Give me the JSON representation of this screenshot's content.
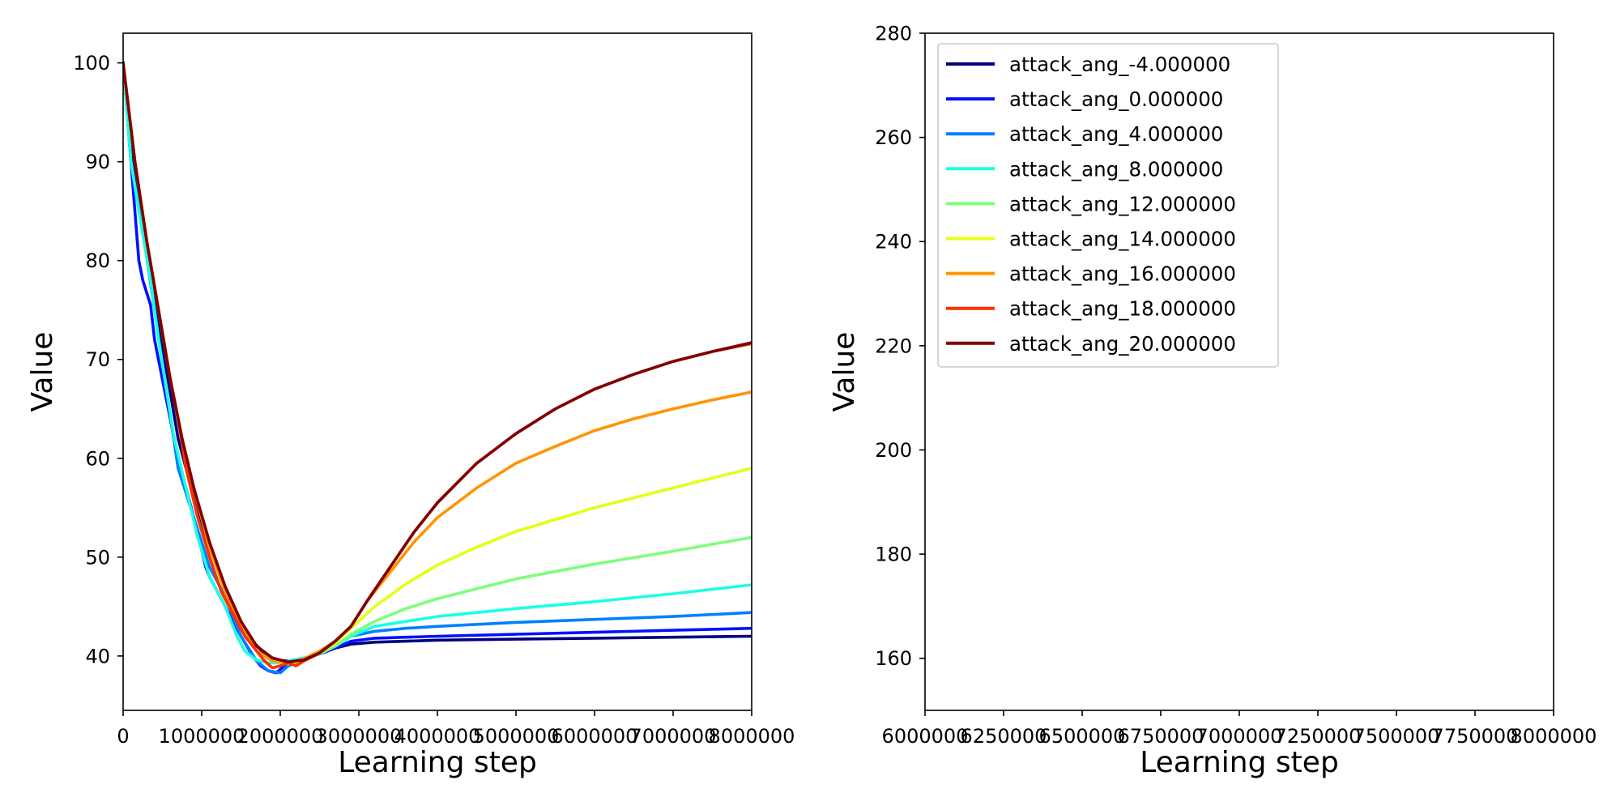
{
  "chart_data": [
    {
      "type": "line",
      "title": "",
      "xlabel": "Learning step",
      "ylabel": "Value",
      "xlim": [
        0,
        8000000
      ],
      "ylim": [
        34.5,
        103
      ],
      "xticks": [
        0,
        1000000,
        2000000,
        3000000,
        4000000,
        5000000,
        6000000,
        7000000,
        8000000
      ],
      "xtick_labels": [
        "0",
        "1000000",
        "2000000",
        "3000000",
        "4000000",
        "5000000",
        "6000000",
        "7000000",
        "8000000"
      ],
      "yticks": [
        40,
        50,
        60,
        70,
        80,
        90,
        100
      ],
      "ytick_labels": [
        "40",
        "50",
        "60",
        "70",
        "80",
        "90",
        "100"
      ],
      "grid": false,
      "legend": "none",
      "series": [
        {
          "name": "attack_ang_-4.000000",
          "color": "#000080",
          "x": [
            0,
            100000,
            250000,
            400000,
            550000,
            700000,
            900000,
            1100000,
            1300000,
            1500000,
            1650000,
            1800000,
            1950000,
            2100000,
            2300000,
            2500000,
            2700000,
            2900000,
            3200000,
            3600000,
            4000000,
            5000000,
            6000000,
            7000000,
            8000000
          ],
          "y": [
            100,
            91,
            84,
            76,
            69,
            62,
            56,
            51,
            47,
            43.5,
            41.5,
            40.2,
            39.6,
            39.5,
            39.7,
            40.2,
            40.8,
            41.2,
            41.4,
            41.5,
            41.6,
            41.7,
            41.8,
            41.9,
            42.0
          ]
        },
        {
          "name": "attack_ang_0.000000",
          "color": "#0010ff",
          "x": [
            0,
            100000,
            200000,
            250000,
            350000,
            400000,
            550000,
            700000,
            900000,
            1050000,
            1100000,
            1300000,
            1500000,
            1650000,
            1750000,
            1850000,
            1950000,
            2100000,
            2300000,
            2500000,
            2700000,
            2900000,
            3200000,
            3600000,
            4000000,
            5000000,
            6000000,
            7000000,
            8000000
          ],
          "y": [
            100,
            90,
            80,
            78,
            75.5,
            72,
            66,
            60,
            54,
            49,
            48,
            45,
            42,
            40,
            39,
            38.5,
            38.3,
            39.3,
            39.7,
            40.2,
            40.8,
            41.5,
            41.8,
            41.9,
            42.0,
            42.2,
            42.4,
            42.6,
            42.8
          ]
        },
        {
          "name": "attack_ang_4.000000",
          "color": "#0080ff",
          "x": [
            0,
            100000,
            250000,
            400000,
            550000,
            700000,
            900000,
            1100000,
            1300000,
            1500000,
            1700000,
            1850000,
            2000000,
            2100000,
            2300000,
            2500000,
            2700000,
            2900000,
            3200000,
            3600000,
            4000000,
            5000000,
            6000000,
            7000000,
            8000000
          ],
          "y": [
            100,
            90,
            83,
            75,
            67,
            59,
            54,
            49,
            46,
            42,
            39.5,
            38.5,
            38.3,
            39,
            39.6,
            40.2,
            41.0,
            42.0,
            42.5,
            42.8,
            43.0,
            43.4,
            43.7,
            44.0,
            44.4
          ]
        },
        {
          "name": "attack_ang_8.000000",
          "color": "#1affe5",
          "x": [
            0,
            100000,
            200000,
            350000,
            450000,
            550000,
            650000,
            800000,
            950000,
            1100000,
            1300000,
            1450000,
            1550000,
            1700000,
            1850000,
            2000000,
            2100000,
            2300000,
            2500000,
            2700000,
            2900000,
            3200000,
            3600000,
            4000000,
            5000000,
            6000000,
            7000000,
            8000000
          ],
          "y": [
            100,
            90,
            85,
            78,
            72,
            67,
            62,
            57,
            52,
            48,
            45,
            42,
            40.5,
            39.6,
            39.3,
            39.3,
            39.5,
            39.8,
            40.3,
            41.0,
            42.0,
            43.0,
            43.5,
            44.0,
            44.8,
            45.5,
            46.3,
            47.2
          ]
        },
        {
          "name": "attack_ang_12.000000",
          "color": "#7dff7a",
          "x": [
            0,
            150000,
            300000,
            450000,
            600000,
            750000,
            900000,
            1100000,
            1300000,
            1500000,
            1700000,
            1900000,
            2100000,
            2300000,
            2500000,
            2700000,
            2900000,
            3200000,
            3600000,
            4000000,
            4500000,
            5000000,
            6000000,
            7000000,
            8000000
          ],
          "y": [
            100,
            90,
            82,
            75,
            68,
            62,
            57,
            51,
            47,
            43,
            40.5,
            39.5,
            39.3,
            39.6,
            40.2,
            41.0,
            42.2,
            43.5,
            44.8,
            45.8,
            46.8,
            47.8,
            49.3,
            50.6,
            52.0
          ]
        },
        {
          "name": "attack_ang_14.000000",
          "color": "#e4ff13",
          "x": [
            0,
            150000,
            300000,
            450000,
            600000,
            750000,
            900000,
            1100000,
            1300000,
            1500000,
            1700000,
            1900000,
            2100000,
            2300000,
            2500000,
            2700000,
            2900000,
            3200000,
            3600000,
            4000000,
            4500000,
            5000000,
            6000000,
            7000000,
            8000000
          ],
          "y": [
            100,
            90,
            82,
            75,
            68,
            62,
            57,
            51,
            46.5,
            43,
            40.5,
            39.5,
            39.2,
            39.6,
            40.3,
            41.3,
            42.8,
            45,
            47.3,
            49.2,
            51.0,
            52.6,
            55.0,
            57.0,
            59.0
          ]
        },
        {
          "name": "attack_ang_16.000000",
          "color": "#ff9400",
          "x": [
            0,
            150000,
            300000,
            450000,
            600000,
            750000,
            900000,
            1100000,
            1300000,
            1500000,
            1700000,
            1900000,
            2100000,
            2300000,
            2500000,
            2700000,
            2900000,
            3100000,
            3400000,
            3700000,
            4000000,
            4500000,
            5000000,
            5500000,
            6000000,
            6500000,
            7000000,
            7500000,
            8000000
          ],
          "y": [
            100,
            90,
            82,
            75,
            68,
            62,
            57,
            51,
            46.5,
            43,
            40.5,
            39.5,
            39.3,
            39.7,
            40.5,
            41.5,
            43.0,
            45.5,
            48.5,
            51.5,
            54.0,
            57.0,
            59.5,
            61.2,
            62.8,
            64.0,
            65.0,
            65.9,
            66.7
          ]
        },
        {
          "name": "attack_ang_18.000000",
          "color": "#ff3000",
          "x": [
            0,
            150000,
            300000,
            450000,
            600000,
            700000,
            800000,
            950000,
            1100000,
            1250000,
            1350000,
            1450000,
            1550000,
            1700000,
            1800000,
            1900000,
            2000000,
            2100000,
            2200000,
            2300000,
            2500000,
            2700000,
            2900000,
            3100000,
            3400000,
            3700000,
            4000000,
            4500000,
            5000000,
            5500000,
            6000000,
            6500000,
            7000000,
            7500000,
            8000000
          ],
          "y": [
            100,
            90,
            82,
            75,
            68,
            64,
            59,
            54,
            50,
            46.5,
            45,
            43.5,
            42,
            40.5,
            39.5,
            38.8,
            39.0,
            39.3,
            39.0,
            39.5,
            40.3,
            41.5,
            43.0,
            45.5,
            49,
            52.5,
            55.5,
            59.5,
            62.5,
            65.0,
            67.0,
            68.5,
            69.8,
            70.8,
            71.6
          ]
        },
        {
          "name": "attack_ang_20.000000",
          "color": "#800000",
          "x": [
            0,
            150000,
            300000,
            450000,
            600000,
            750000,
            900000,
            1100000,
            1300000,
            1500000,
            1700000,
            1900000,
            2100000,
            2300000,
            2500000,
            2700000,
            2900000,
            3100000,
            3400000,
            3700000,
            4000000,
            4500000,
            5000000,
            5500000,
            6000000,
            6500000,
            7000000,
            7500000,
            8000000
          ],
          "y": [
            100,
            90,
            82,
            75,
            68,
            62,
            57,
            51.5,
            47,
            43.5,
            41,
            39.8,
            39.4,
            39.6,
            40.3,
            41.5,
            43.0,
            45.5,
            49,
            52.5,
            55.5,
            59.5,
            62.5,
            65.0,
            67.0,
            68.5,
            69.8,
            70.8,
            71.7
          ]
        }
      ]
    },
    {
      "type": "line",
      "title": "",
      "xlabel": "Learning step",
      "ylabel": "Value",
      "xlim": [
        6000000,
        8000000
      ],
      "ylim": [
        150,
        280
      ],
      "xticks": [
        6000000,
        6250000,
        6500000,
        6750000,
        7000000,
        7250000,
        7500000,
        7750000,
        8000000
      ],
      "xtick_labels": [
        "6000000",
        "6250000",
        "6500000",
        "6750000",
        "7000000",
        "7250000",
        "7500000",
        "7750000",
        "8000000"
      ],
      "yticks": [
        160,
        180,
        200,
        220,
        240,
        260,
        280
      ],
      "ytick_labels": [
        "160",
        "180",
        "200",
        "220",
        "240",
        "260",
        "280"
      ],
      "grid": false,
      "legend": "top-left",
      "legend_entries": [
        {
          "label": "attack_ang_-4.000000",
          "color": "#000080"
        },
        {
          "label": "attack_ang_0.000000",
          "color": "#0010ff"
        },
        {
          "label": "attack_ang_4.000000",
          "color": "#0080ff"
        },
        {
          "label": "attack_ang_8.000000",
          "color": "#1affe5"
        },
        {
          "label": "attack_ang_12.000000",
          "color": "#7dff7a"
        },
        {
          "label": "attack_ang_14.000000",
          "color": "#e4ff13"
        },
        {
          "label": "attack_ang_16.000000",
          "color": "#ff9400"
        },
        {
          "label": "attack_ang_18.000000",
          "color": "#ff3000"
        },
        {
          "label": "attack_ang_20.000000",
          "color": "#800000"
        }
      ],
      "series": []
    }
  ]
}
